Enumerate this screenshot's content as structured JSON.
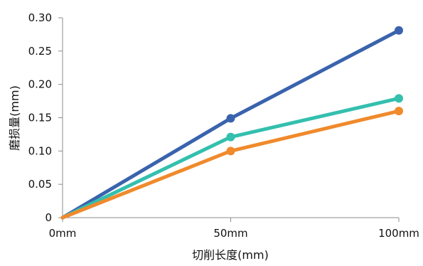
{
  "chart_data": {
    "type": "line",
    "title": "",
    "xlabel": "切削长度(mm)",
    "ylabel": "磨损量(mm)",
    "categories": [
      "0mm",
      "50mm",
      "100mm"
    ],
    "ylim": [
      0,
      0.3
    ],
    "yticks": [
      "0",
      "0.05",
      "0.10",
      "0.15",
      "0.20",
      "0.25",
      "0.30"
    ],
    "grid": false,
    "legend": "none",
    "series": [
      {
        "color": "#3a63ad",
        "values": [
          0,
          0.149,
          0.281
        ]
      },
      {
        "color": "#34bfae",
        "values": [
          0,
          0.121,
          0.179
        ]
      },
      {
        "color": "#f08a2c",
        "values": [
          0,
          0.1,
          0.16
        ]
      }
    ]
  }
}
